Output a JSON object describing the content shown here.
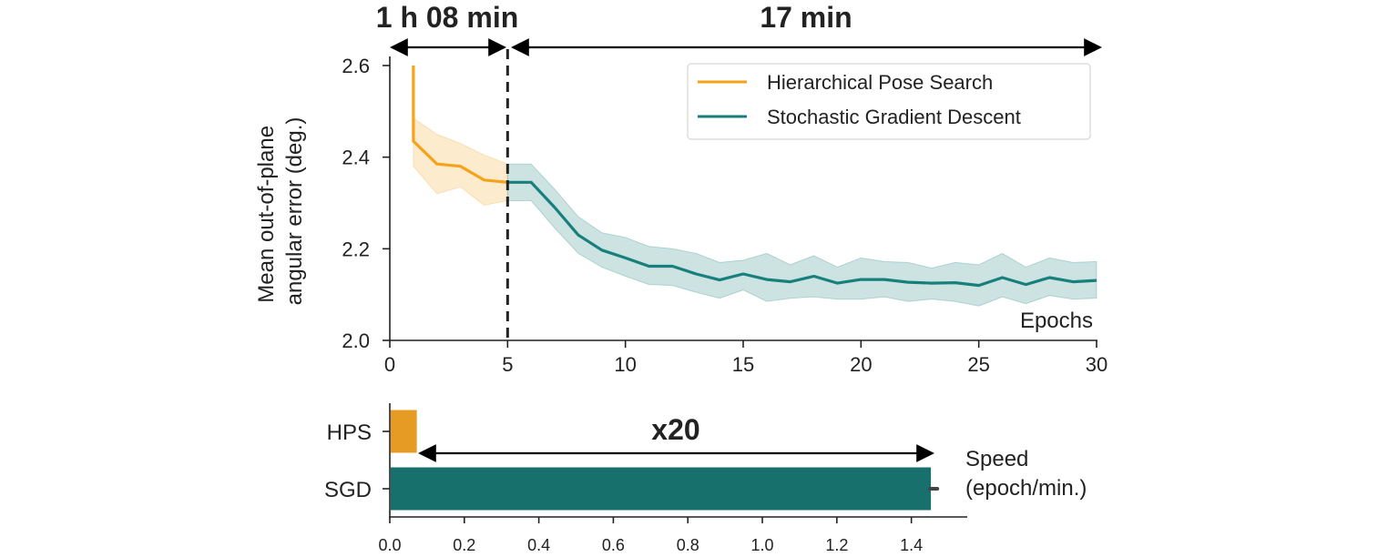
{
  "chart_data": [
    {
      "type": "line",
      "xlabel": "Epochs",
      "ylabel_lines": [
        "Mean out-of-plane",
        "angular error (deg.)"
      ],
      "xlim": [
        0,
        30
      ],
      "ylim": [
        2.0,
        2.6
      ],
      "xticks": [
        "0",
        "5",
        "10",
        "15",
        "20",
        "25",
        "30"
      ],
      "yticks": [
        "2.0",
        "2.2",
        "2.4",
        "2.6"
      ],
      "legend_position": "top-right",
      "grid": false,
      "annotations": {
        "left_span_label": "1 h 08 min",
        "right_span_label": "17 min",
        "divider_x": 5
      },
      "series": [
        {
          "name": "Hierarchical Pose Search",
          "color": "#f5a31a",
          "x": [
            1,
            1,
            2,
            3,
            4,
            5
          ],
          "y": [
            2.6,
            2.435,
            2.385,
            2.38,
            2.35,
            2.345
          ],
          "lower": [
            2.6,
            2.38,
            2.32,
            2.335,
            2.295,
            2.305
          ],
          "upper": [
            2.6,
            2.485,
            2.45,
            2.43,
            2.405,
            2.385
          ]
        },
        {
          "name": "Stochastic Gradient Descent",
          "color": "#17807d",
          "x": [
            5,
            6,
            7,
            8,
            9,
            10,
            11,
            12,
            13,
            14,
            15,
            16,
            17,
            18,
            19,
            20,
            21,
            22,
            23,
            24,
            25,
            26,
            27,
            28,
            29,
            30
          ],
          "y": [
            2.345,
            2.345,
            2.29,
            2.23,
            2.197,
            2.18,
            2.162,
            2.162,
            2.145,
            2.132,
            2.145,
            2.133,
            2.128,
            2.14,
            2.125,
            2.133,
            2.133,
            2.127,
            2.125,
            2.126,
            2.12,
            2.137,
            2.122,
            2.137,
            2.128,
            2.131
          ],
          "lower": [
            2.305,
            2.305,
            2.245,
            2.19,
            2.16,
            2.14,
            2.122,
            2.12,
            2.105,
            2.092,
            2.11,
            2.085,
            2.092,
            2.095,
            2.09,
            2.09,
            2.095,
            2.085,
            2.09,
            2.085,
            2.075,
            2.095,
            2.08,
            2.098,
            2.09,
            2.092
          ],
          "upper": [
            2.385,
            2.385,
            2.33,
            2.27,
            2.235,
            2.225,
            2.205,
            2.2,
            2.19,
            2.17,
            2.175,
            2.19,
            2.165,
            2.185,
            2.16,
            2.18,
            2.172,
            2.17,
            2.158,
            2.17,
            2.165,
            2.19,
            2.16,
            2.18,
            2.17,
            2.172
          ]
        }
      ]
    },
    {
      "type": "bar",
      "orientation": "horizontal",
      "categories": [
        "HPS",
        "SGD"
      ],
      "values": [
        0.07,
        1.45
      ],
      "error": [
        0,
        0.01
      ],
      "colors": [
        "#e69b25",
        "#17706c"
      ],
      "xlim": [
        0,
        1.55
      ],
      "xticks": [
        "0.0",
        "0.2",
        "0.4",
        "0.6",
        "0.8",
        "1.0",
        "1.2",
        "1.4"
      ],
      "xlabel_lines": [
        "Speed",
        "(epoch/min.)"
      ],
      "annotation": "x20"
    }
  ]
}
